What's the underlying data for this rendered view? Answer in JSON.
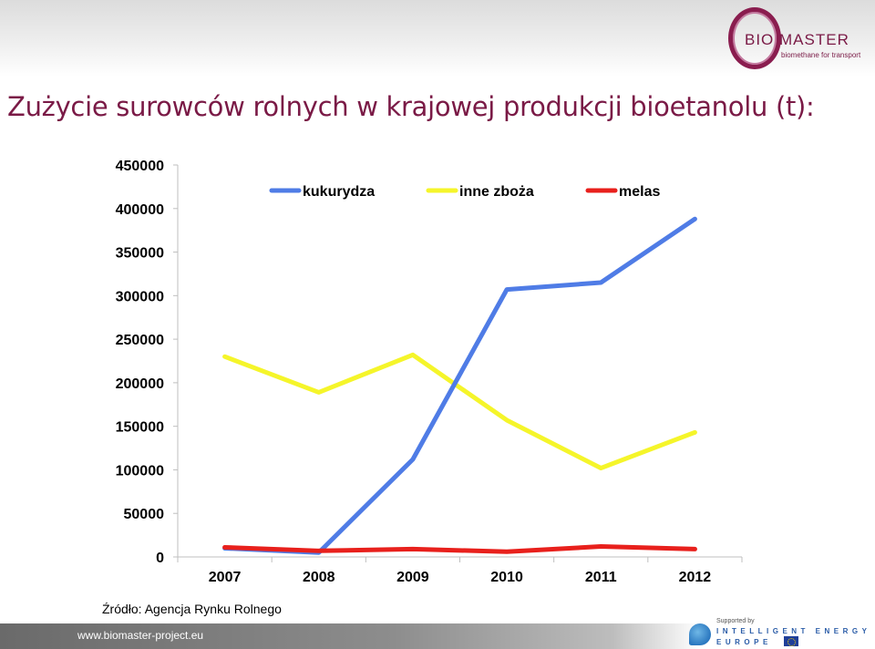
{
  "header": {
    "logo_text": "BIO MASTER",
    "logo_tagline": "biomethane for transport",
    "title": "Zużycie surowców rolnych w krajowej produkcji bioetanolu (t):"
  },
  "chart_data": {
    "type": "line",
    "title": "",
    "xlabel": "",
    "ylabel": "",
    "categories": [
      "2007",
      "2008",
      "2009",
      "2010",
      "2011",
      "2012"
    ],
    "ylim": [
      0,
      450000
    ],
    "yticks": [
      0,
      50000,
      100000,
      150000,
      200000,
      250000,
      300000,
      350000,
      400000,
      450000
    ],
    "ytick_labels": [
      "0",
      "50000",
      "100000",
      "150000",
      "200000",
      "250000",
      "300000",
      "350000",
      "400000",
      "450000"
    ],
    "grid": false,
    "legend_position": "top",
    "series": [
      {
        "name": "kukurydza",
        "color": "#4f7ce6",
        "values": [
          10000,
          5000,
          112000,
          307000,
          315000,
          388000
        ]
      },
      {
        "name": "inne zboża",
        "color": "#f5f52a",
        "values": [
          230000,
          189000,
          232000,
          157000,
          102000,
          143000
        ]
      },
      {
        "name": "melas",
        "color": "#e8201c",
        "values": [
          11000,
          7000,
          9000,
          6000,
          12000,
          9000
        ]
      }
    ]
  },
  "source": "Źródło: Agencja Rynku Rolnego",
  "footer": {
    "url": "www.biomaster-project.eu",
    "supported_by": "Supported by",
    "program_name": "INTELLIGENT ENERGY",
    "program_region": "EUROPE"
  }
}
